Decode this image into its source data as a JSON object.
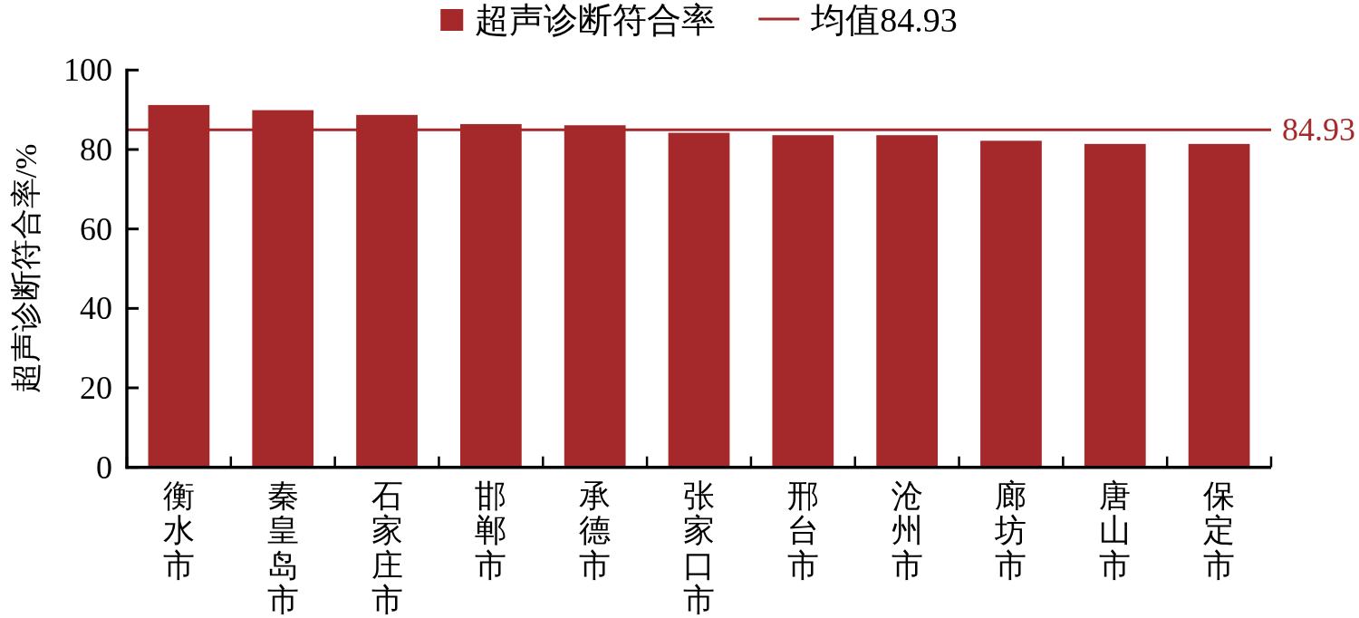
{
  "chart_data": {
    "type": "bar",
    "categories": [
      "衡水市",
      "秦皇岛市",
      "石家庄市",
      "邯郸市",
      "承德市",
      "张家口市",
      "邢台市",
      "沧州市",
      "廊坊市",
      "唐山市",
      "保定市"
    ],
    "series": [
      {
        "name": "超声诊断符合率",
        "color": "#a5292a",
        "values": [
          91.2,
          89.9,
          88.7,
          86.4,
          86.1,
          84.2,
          83.6,
          83.6,
          82.2,
          81.4,
          81.4
        ]
      }
    ],
    "ylabel": "超声诊断符合率/%",
    "ylim": [
      0,
      100
    ],
    "yticks": [
      0,
      20,
      40,
      60,
      80,
      100
    ],
    "ref_lines": [
      {
        "axis": "y",
        "value": 84.93,
        "label": "84.93",
        "color": "#a5292a",
        "line_style": "solid"
      }
    ],
    "annotations": [
      "均值84.93"
    ],
    "legend": "top"
  }
}
